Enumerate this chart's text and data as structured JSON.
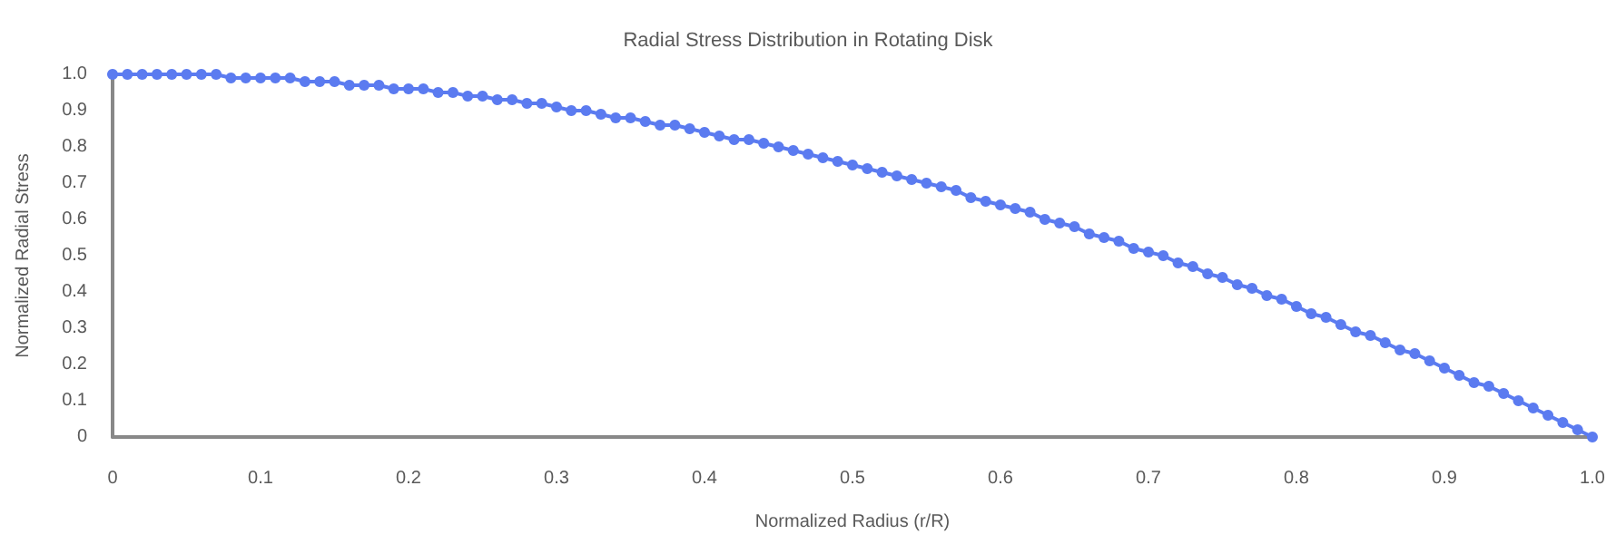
{
  "chart_data": {
    "type": "line",
    "title": "Radial Stress Distribution in Rotating Disk",
    "xlabel": "Normalized Radius (r/R)",
    "ylabel": "Normalized Radial Stress",
    "x": [
      0,
      0.01,
      0.02,
      0.03,
      0.04,
      0.05,
      0.06,
      0.07,
      0.08,
      0.09,
      0.1,
      0.11,
      0.12,
      0.13,
      0.14,
      0.15,
      0.16,
      0.17,
      0.18,
      0.19,
      0.2,
      0.21,
      0.22,
      0.23,
      0.24,
      0.25,
      0.26,
      0.27,
      0.28,
      0.29,
      0.3,
      0.31,
      0.32,
      0.33,
      0.34,
      0.35,
      0.36,
      0.37,
      0.38,
      0.39,
      0.4,
      0.41,
      0.42,
      0.43,
      0.44,
      0.45,
      0.46,
      0.47,
      0.48,
      0.49,
      0.5,
      0.51,
      0.52,
      0.53,
      0.54,
      0.55,
      0.56,
      0.57,
      0.58,
      0.59,
      0.6,
      0.61,
      0.62,
      0.63,
      0.64,
      0.65,
      0.66,
      0.67,
      0.68,
      0.69,
      0.7,
      0.71,
      0.72,
      0.73,
      0.74,
      0.75,
      0.76,
      0.77,
      0.78,
      0.79,
      0.8,
      0.81,
      0.82,
      0.83,
      0.84,
      0.85,
      0.86,
      0.87,
      0.88,
      0.89,
      0.9,
      0.91,
      0.92,
      0.93,
      0.94,
      0.95,
      0.96,
      0.97,
      0.98,
      0.99,
      1
    ],
    "series": [
      {
        "color": "#5b7bf0",
        "values": [
          1,
          1,
          1,
          1,
          1,
          1,
          1,
          1,
          0.99,
          0.99,
          0.99,
          0.99,
          0.99,
          0.98,
          0.98,
          0.98,
          0.97,
          0.97,
          0.97,
          0.96,
          0.96,
          0.96,
          0.95,
          0.95,
          0.94,
          0.94,
          0.93,
          0.93,
          0.92,
          0.92,
          0.91,
          0.9,
          0.9,
          0.89,
          0.88,
          0.88,
          0.87,
          0.86,
          0.86,
          0.85,
          0.84,
          0.83,
          0.82,
          0.82,
          0.81,
          0.8,
          0.79,
          0.78,
          0.77,
          0.76,
          0.75,
          0.74,
          0.73,
          0.72,
          0.71,
          0.7,
          0.69,
          0.68,
          0.66,
          0.65,
          0.64,
          0.63,
          0.62,
          0.6,
          0.59,
          0.58,
          0.56,
          0.55,
          0.54,
          0.52,
          0.51,
          0.5,
          0.48,
          0.47,
          0.45,
          0.44,
          0.42,
          0.41,
          0.39,
          0.38,
          0.36,
          0.34,
          0.33,
          0.31,
          0.29,
          0.28,
          0.26,
          0.24,
          0.23,
          0.21,
          0.19,
          0.17,
          0.15,
          0.14,
          0.12,
          0.1,
          0.08,
          0.06,
          0.04,
          0.02,
          0
        ]
      }
    ],
    "xlim": [
      0,
      1
    ],
    "xticks": [
      0,
      0.1,
      0.2,
      0.3,
      0.4,
      0.5,
      0.6,
      0.7,
      0.8,
      0.9,
      {
        "value": 1,
        "label": "1.0"
      }
    ],
    "ylim": [
      0,
      1
    ],
    "yticks": [
      0,
      0.1,
      0.2,
      0.3,
      0.4,
      0.5,
      0.6,
      0.7,
      0.8,
      0.9,
      {
        "value": 1,
        "label": "1.0"
      }
    ],
    "grid": false,
    "marker": "circle",
    "line_style": "solid"
  }
}
